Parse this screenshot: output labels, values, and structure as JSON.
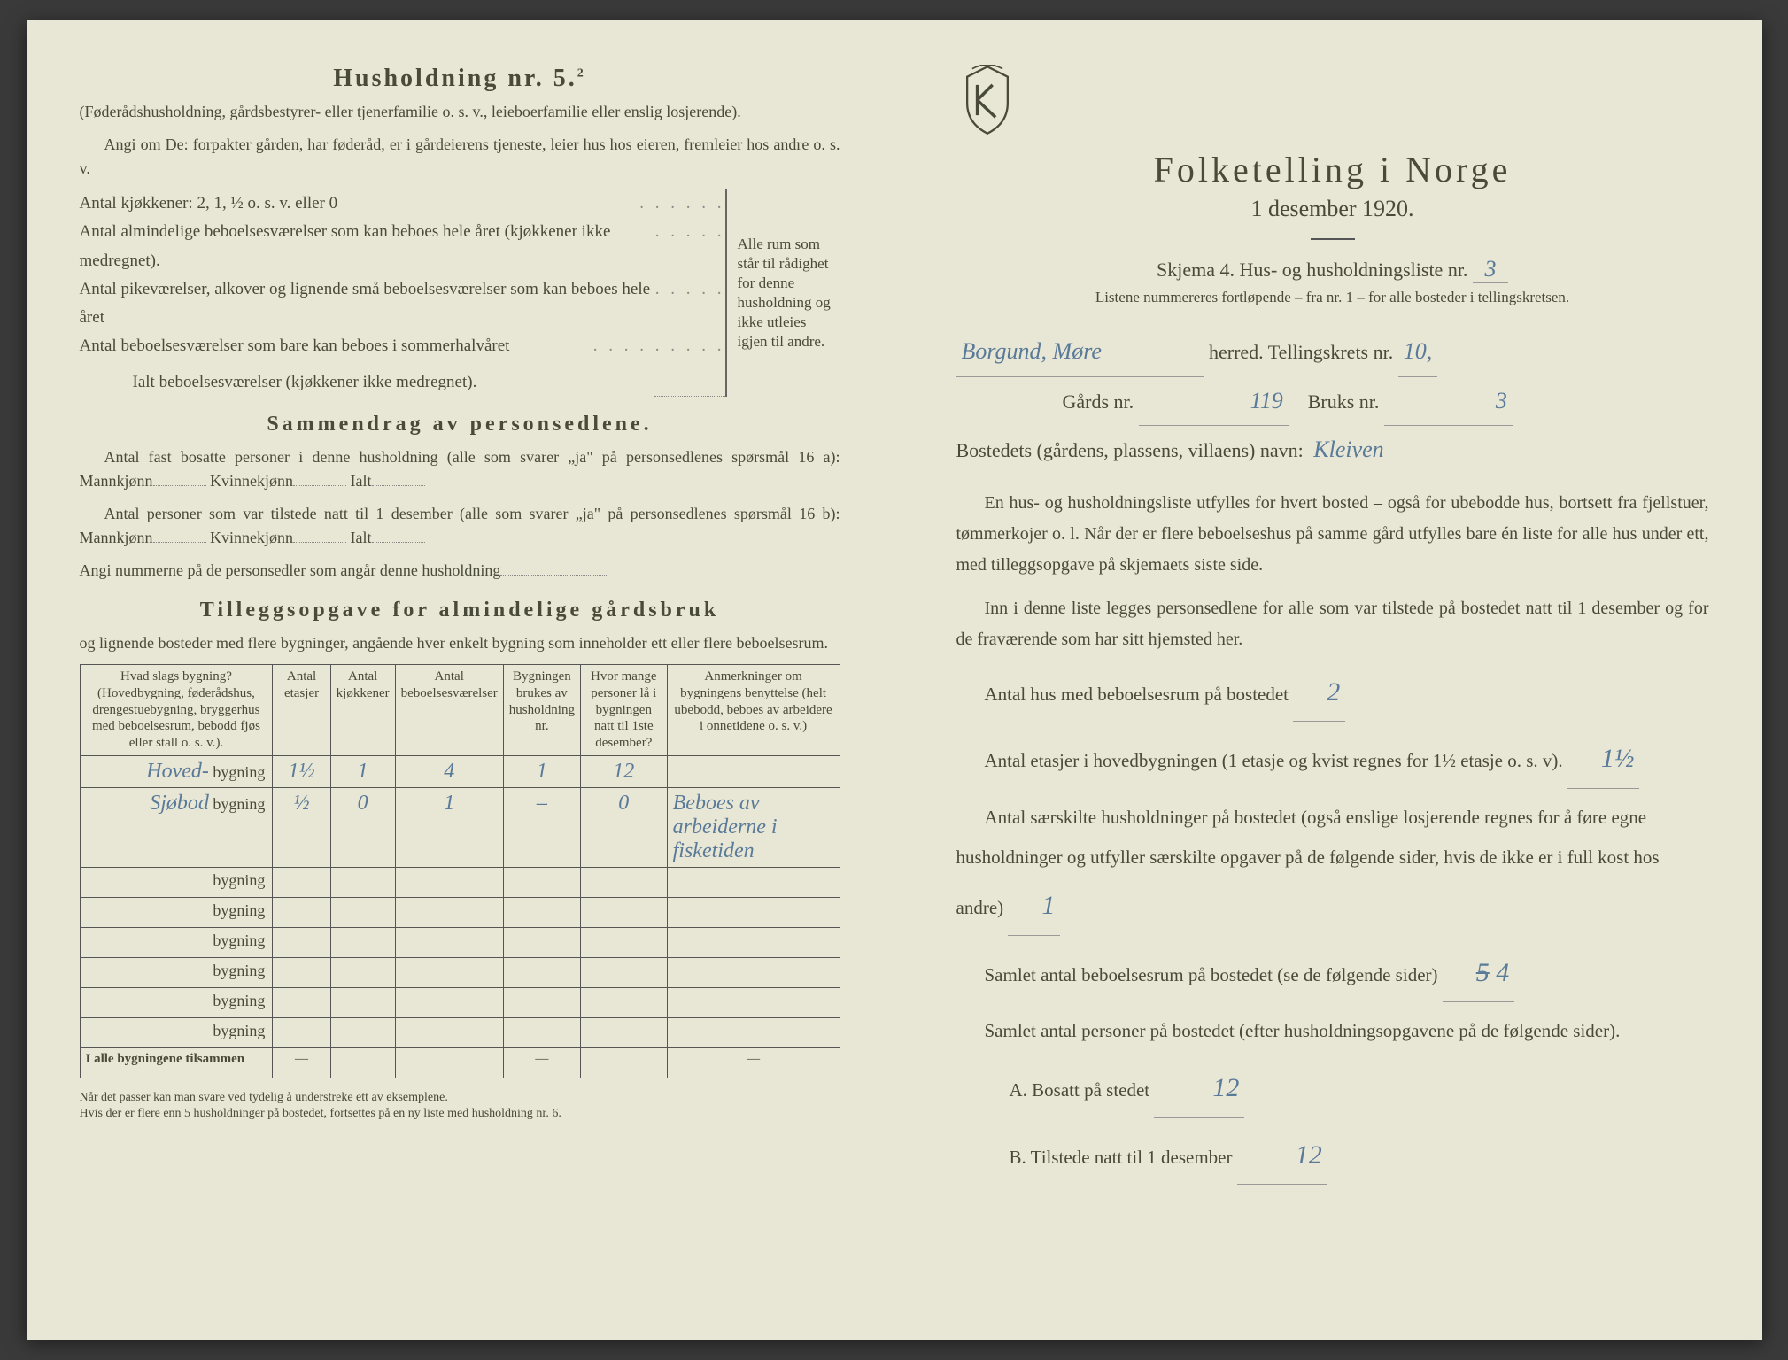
{
  "left": {
    "heading": "Husholdning nr. 5.",
    "heading_sup": "2",
    "para1": "(Føderådshusholdning, gårdsbestyrer- eller tjenerfamilie o. s. v., leieboerfamilie eller enslig losjerende).",
    "para2": "Angi om De: forpakter gården, har føderåd, er i gårdeierens tjeneste, leier hus hos eieren, fremleier hos andre o. s. v.",
    "kitchens_label": "Antal kjøkkener: 2, 1, ½ o. s. v. eller 0",
    "rooms1": "Antal almindelige beboelsesværelser som kan beboes hele året (kjøkkener ikke medregnet).",
    "rooms2": "Antal pikeværelser, alkover og lignende små beboelsesværelser som kan beboes hele året",
    "rooms3": "Antal beboelsesværelser som bare kan beboes i sommerhalvåret",
    "rooms_total": "Ialt beboelsesværelser (kjøkkener ikke medregnet).",
    "brace_text": "Alle rum som står til rådighet for denne husholdning og ikke utleies igjen til andre.",
    "summary_heading": "Sammendrag av personsedlene.",
    "summary1a": "Antal fast bosatte personer i denne husholdning (alle som svarer „ja\" på personsedlenes spørsmål 16 a): Mannkjønn",
    "summary1b": "Kvinnekjønn",
    "summary1c": "Ialt",
    "summary2a": "Antal personer som var tilstede natt til 1 desember (alle som svarer „ja\" på personsedlenes spørsmål 16 b): Mannkjønn",
    "summary_numbers": "Angi nummerne på de personsedler som angår denne husholdning",
    "tillegg_heading": "Tilleggsopgave for almindelige gårdsbruk",
    "tillegg_sub": "og lignende bosteder med flere bygninger, angående hver enkelt bygning som inneholder ett eller flere beboelsesrum.",
    "table": {
      "headers": [
        "Hvad slags bygning?\n(Hovedbygning, føderådshus, drengestuebygning, bryggerhus med beboelsesrum, bebodd fjøs eller stall o. s. v.).",
        "Antal etasjer",
        "Antal kjøkkener",
        "Antal beboelsesværelser",
        "Bygningen brukes av husholdning nr.",
        "Hvor mange personer lå i bygningen natt til 1ste desember?",
        "Anmerkninger om bygningens benyttelse (helt ubebodd, beboes av arbeidere i onnetidene o. s. v.)"
      ],
      "rows": [
        {
          "name": "Hoved-",
          "etasjer": "1½",
          "kjokken": "1",
          "rom": "4",
          "hush": "1",
          "pers": "12",
          "anm": ""
        },
        {
          "name": "Sjøbod",
          "etasjer": "½",
          "kjokken": "0",
          "rom": "1",
          "hush": "–",
          "pers": "0",
          "anm": "Beboes av arbeiderne i fisketiden"
        }
      ],
      "suffix": "bygning",
      "sum_label": "I alle bygningene tilsammen"
    },
    "footnote": "Når det passer kan man svare ved tydelig å understreke ett av eksemplene.\nHvis der er flere enn 5 husholdninger på bostedet, fortsettes på en ny liste med husholdning nr. 6."
  },
  "right": {
    "title": "Folketelling i Norge",
    "subtitle": "1 desember 1920.",
    "schema_prefix": "Skjema 4.  Hus- og husholdningsliste nr.",
    "schema_nr": "3",
    "schema_note": "Listene nummereres fortløpende – fra nr. 1 – for alle bosteder i tellingskretsen.",
    "herred_value": "Borgund, Møre",
    "herred_suffix": "herred.  Tellingskrets nr.",
    "krets_nr": "10,",
    "gards_label": "Gårds nr.",
    "gards_nr": "119",
    "bruks_label": "Bruks nr.",
    "bruks_nr": "3",
    "bosted_label": "Bostedets (gårdens, plassens, villaens) navn:",
    "bosted_value": "Kleiven",
    "para1": "En hus- og husholdningsliste utfylles for hvert bosted – også for ubebodde hus, bortsett fra fjellstuer, tømmerkojer o. l.  Når der er flere beboelseshus på samme gård utfylles bare én liste for alle hus under ett, med tilleggsopgave på skjemaets siste side.",
    "para2": "Inn i denne liste legges personsedlene for alle som var tilstede på bostedet natt til 1 desember og for de fraværende som har sitt hjemsted her.",
    "q1": "Antal hus med beboelsesrum på bostedet",
    "a1": "2",
    "q2a": "Antal etasjer i hovedbygningen (1 etasje og kvist regnes for 1½ etasje o. s. v).",
    "a2": "1½",
    "q3": "Antal særskilte husholdninger på bostedet (også enslige losjerende regnes for å føre egne husholdninger og utfyller særskilte opgaver på de følgende sider, hvis de ikke er i full kost hos andre)",
    "a3": "1",
    "q4": "Samlet antal beboelsesrum på bostedet (se de følgende sider)",
    "a4": "4",
    "a4_struck": "5",
    "q5": "Samlet antal personer på bostedet (efter husholdningsopgavene på de følgende sider).",
    "qA": "A.  Bosatt på stedet",
    "aA": "12",
    "qB": "B.  Tilstede natt til 1 desember",
    "aB": "12"
  }
}
